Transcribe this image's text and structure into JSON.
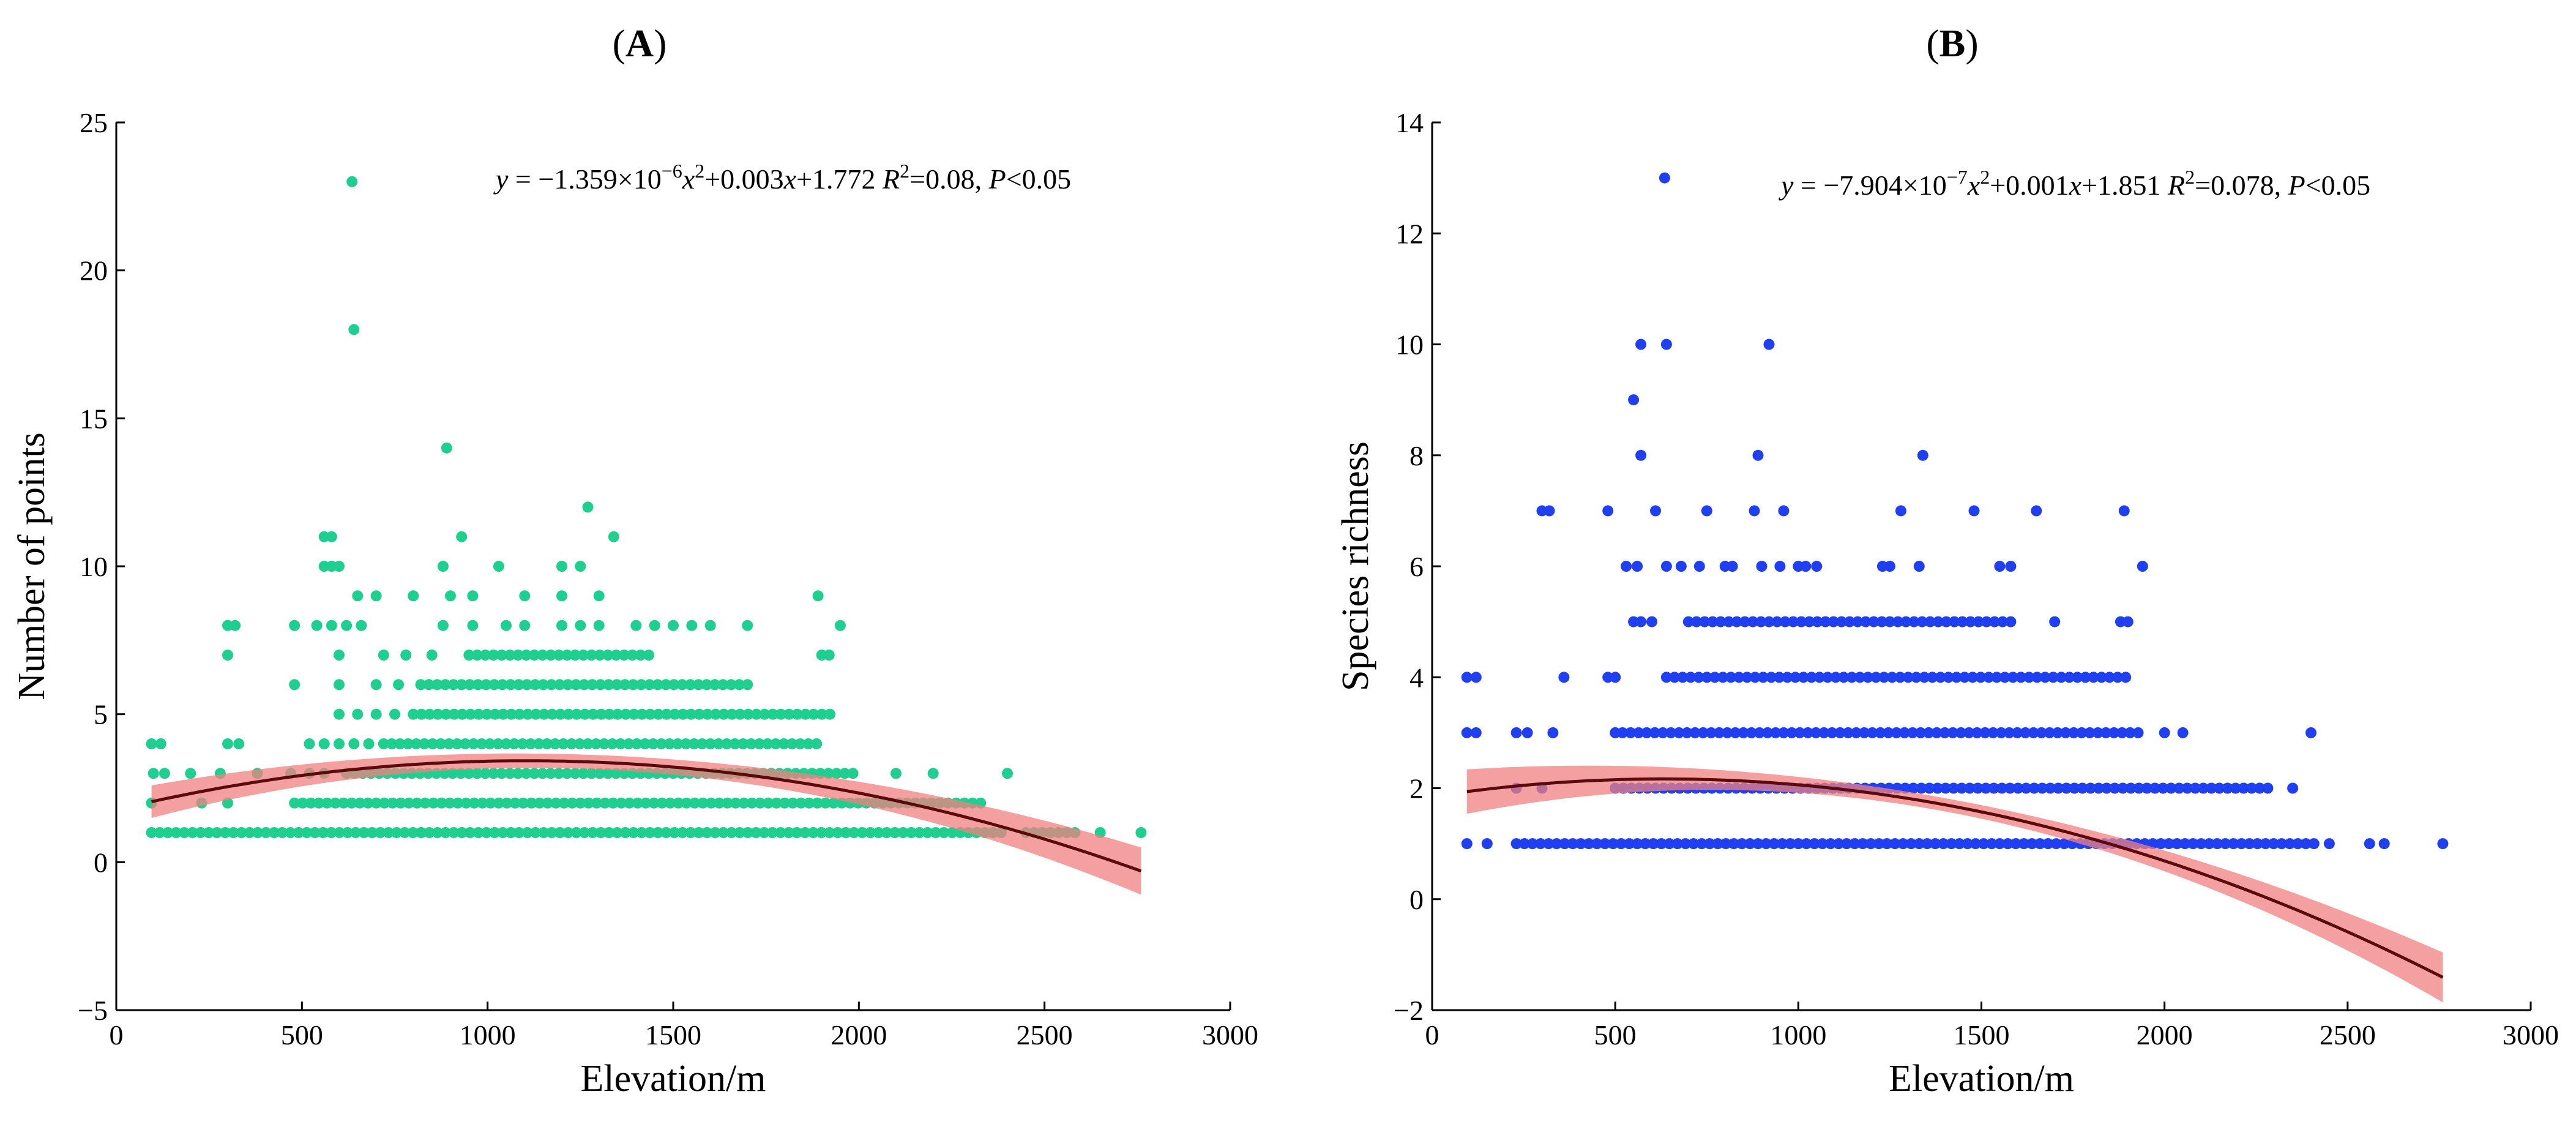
{
  "chart_data": [
    {
      "type": "scatter",
      "panel_label": "(A)",
      "panel_letter": "A",
      "xlabel": "Elevation/m",
      "ylabel": "Number of points",
      "xlim": [
        0,
        3000
      ],
      "ylim": [
        -5,
        25
      ],
      "xticks": [
        0,
        500,
        1000,
        1500,
        2000,
        2500,
        3000
      ],
      "yticks": [
        -5,
        0,
        5,
        10,
        15,
        20,
        25
      ],
      "point_color": "#1ecf8f",
      "curve_color": "#5a0a0a",
      "band_color": "#f08080",
      "equation": {
        "y_symbol": "y",
        "equals": " = −1.359×10",
        "exp": "−6",
        "x1": "x",
        "sq": "2",
        "mid": "+0.003",
        "x2": "x",
        "tail": "+1.772 ",
        "r_symbol": "R",
        "r_exp": "2",
        "r_val": "=0.08, ",
        "p_symbol": "P",
        "p_val": "<0.05"
      },
      "fit": {
        "a": -1.359e-06,
        "b": 0.003,
        "c": 1.772,
        "x_range": [
          95,
          2760
        ],
        "ci_halfwidth": [
          0.55,
          0.25,
          0.8
        ]
      },
      "series": [
        {
          "y": 1,
          "ranges": [
            [
              95,
              2400
            ],
            [
              2450,
              2600
            ]
          ],
          "points": [
            2650,
            2760
          ]
        },
        {
          "y": 2,
          "ranges": [
            [
              480,
              2330
            ]
          ],
          "points": [
            95,
            230,
            300
          ]
        },
        {
          "y": 3,
          "ranges": [
            [
              620,
              2000
            ]
          ],
          "points": [
            100,
            130,
            200,
            280,
            380,
            470,
            520,
            560,
            2100,
            2200,
            2400
          ]
        },
        {
          "y": 4,
          "ranges": [
            [
              720,
              1900
            ]
          ],
          "points": [
            95,
            120,
            300,
            330,
            520,
            560,
            600,
            640,
            680
          ]
        },
        {
          "y": 5,
          "ranges": [
            [
              800,
              1930
            ]
          ],
          "points": [
            600,
            650,
            700,
            750
          ]
        },
        {
          "y": 6,
          "ranges": [
            [
              820,
              1700
            ]
          ],
          "points": [
            480,
            600,
            700,
            760
          ]
        },
        {
          "y": 7,
          "ranges": [
            [
              950,
              1450
            ]
          ],
          "points": [
            300,
            600,
            720,
            780,
            850,
            1900,
            1920
          ]
        },
        {
          "y": 8,
          "points": [
            300,
            320,
            480,
            540,
            580,
            620,
            660,
            880,
            960,
            1050,
            1100,
            1200,
            1250,
            1300,
            1400,
            1450,
            1500,
            1550,
            1600,
            1700,
            1950
          ]
        },
        {
          "y": 9,
          "points": [
            650,
            700,
            800,
            900,
            960,
            1100,
            1200,
            1300,
            1890
          ]
        },
        {
          "y": 10,
          "points": [
            560,
            580,
            600,
            880,
            1030,
            1200,
            1250
          ]
        },
        {
          "y": 11,
          "points": [
            560,
            580,
            930,
            1340
          ]
        },
        {
          "y": 12,
          "points": [
            1270
          ]
        },
        {
          "y": 14,
          "points": [
            890
          ]
        },
        {
          "y": 18,
          "points": [
            640
          ]
        },
        {
          "y": 23,
          "points": [
            635
          ]
        }
      ]
    },
    {
      "type": "scatter",
      "panel_label": "(B)",
      "panel_letter": "B",
      "xlabel": "Elevation/m",
      "ylabel": "Species richness",
      "xlim": [
        0,
        3000
      ],
      "ylim": [
        -2,
        14
      ],
      "xticks": [
        0,
        500,
        1000,
        1500,
        2000,
        2500,
        3000
      ],
      "yticks": [
        -2,
        0,
        2,
        4,
        6,
        8,
        10,
        12,
        14
      ],
      "point_color": "#1f3ff0",
      "curve_color": "#5a0a0a",
      "band_color": "#f08080",
      "equation": {
        "y_symbol": "y",
        "equals": " = −7.904×10",
        "exp": "−7",
        "x1": "x",
        "sq": "2",
        "mid": "+0.001",
        "x2": "x",
        "tail": "+1.851 ",
        "r_symbol": "R",
        "r_exp": "2",
        "r_val": "=0.078, ",
        "p_symbol": "P",
        "p_val": "<0.05"
      },
      "fit": {
        "a": -7.904e-07,
        "b": 0.001,
        "c": 1.851,
        "x_range": [
          95,
          2760
        ],
        "ci_halfwidth": [
          0.4,
          0.12,
          0.45
        ]
      },
      "series": [
        {
          "y": 1,
          "ranges": [
            [
              230,
              2420
            ]
          ],
          "points": [
            95,
            150,
            2450,
            2560,
            2600,
            2760
          ]
        },
        {
          "y": 2,
          "ranges": [
            [
              500,
              2300
            ]
          ],
          "points": [
            230,
            300,
            2350
          ]
        },
        {
          "y": 3,
          "ranges": [
            [
              520,
              1930
            ]
          ],
          "points": [
            95,
            120,
            230,
            260,
            330,
            500,
            2000,
            2050,
            2400
          ]
        },
        {
          "y": 4,
          "ranges": [
            [
              640,
              1900
            ]
          ],
          "points": [
            95,
            120,
            360,
            480,
            500
          ]
        },
        {
          "y": 5,
          "ranges": [
            [
              700,
              1600
            ]
          ],
          "points": [
            550,
            570,
            600,
            1700,
            1880,
            1900
          ]
        },
        {
          "y": 6,
          "points": [
            530,
            560,
            640,
            680,
            730,
            800,
            820,
            900,
            950,
            1000,
            1020,
            1050,
            1230,
            1250,
            1330,
            1550,
            1580,
            1940
          ]
        },
        {
          "y": 7,
          "points": [
            300,
            320,
            480,
            610,
            750,
            880,
            960,
            1280,
            1480,
            1650,
            1890
          ]
        },
        {
          "y": 8,
          "points": [
            570,
            890,
            1340
          ]
        },
        {
          "y": 9,
          "points": [
            550
          ]
        },
        {
          "y": 10,
          "points": [
            570,
            640,
            920
          ]
        },
        {
          "y": 13,
          "points": [
            635
          ]
        }
      ]
    }
  ]
}
